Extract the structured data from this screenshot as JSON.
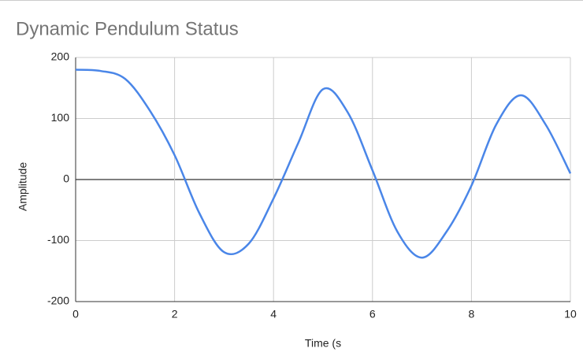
{
  "chart_data": {
    "type": "line",
    "title": "Dynamic Pendulum Status",
    "x_label": "Time (s",
    "y_label": "Amplitude",
    "x": [
      0,
      0.5,
      1,
      1.5,
      2,
      2.5,
      3,
      3.5,
      4,
      4.5,
      5,
      5.5,
      6,
      6.5,
      7,
      7.5,
      8,
      8.5,
      9,
      9.5,
      10
    ],
    "values": [
      180,
      178,
      165,
      113,
      40,
      -55,
      -119,
      -105,
      -31,
      60,
      148,
      110,
      15,
      -85,
      -128,
      -85,
      -10,
      90,
      138,
      90,
      10
    ],
    "color": "#4a86e8",
    "xlim": [
      0,
      10
    ],
    "xticks": [
      0,
      2,
      4,
      6,
      8,
      10
    ],
    "ylim": [
      -200,
      200
    ],
    "yticks": [
      -200,
      -100,
      0,
      100,
      200
    ],
    "grid": true
  }
}
